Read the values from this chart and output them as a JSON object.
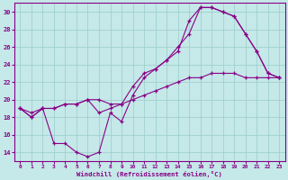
{
  "xlabel": "Windchill (Refroidissement éolien,°C)",
  "bg_color": "#c5e8e8",
  "line_color": "#880088",
  "grid_color": "#99cccc",
  "hours": [
    0,
    1,
    2,
    3,
    4,
    5,
    6,
    7,
    8,
    9,
    10,
    11,
    12,
    13,
    14,
    15,
    16,
    17,
    18,
    19,
    20,
    21,
    22,
    23
  ],
  "line_jagged": [
    19.0,
    18.0,
    19.0,
    15.0,
    15.0,
    14.0,
    13.5,
    14.0,
    18.5,
    17.5,
    20.5,
    22.5,
    23.5,
    24.5,
    25.5,
    29.0,
    30.5,
    30.5,
    30.0,
    29.5,
    27.5,
    25.5,
    23.0,
    22.5
  ],
  "line_diagonal": [
    19.0,
    18.5,
    19.0,
    19.0,
    19.5,
    19.5,
    20.0,
    20.0,
    19.5,
    19.5,
    20.0,
    20.5,
    21.0,
    21.5,
    22.0,
    22.5,
    22.5,
    23.0,
    23.0,
    23.0,
    22.5,
    22.5,
    22.5,
    22.5
  ],
  "line_upper": [
    19.0,
    18.0,
    19.0,
    19.0,
    19.5,
    19.5,
    20.0,
    18.5,
    19.0,
    19.5,
    21.5,
    23.0,
    23.5,
    24.5,
    26.0,
    27.5,
    30.5,
    30.5,
    30.0,
    29.5,
    27.5,
    25.5,
    23.0,
    22.5
  ],
  "ylim": [
    13.0,
    31.0
  ],
  "xlim": [
    -0.5,
    23.5
  ],
  "yticks": [
    14,
    16,
    18,
    20,
    22,
    24,
    26,
    28,
    30
  ],
  "xticks": [
    0,
    1,
    2,
    3,
    4,
    5,
    6,
    7,
    8,
    9,
    10,
    11,
    12,
    13,
    14,
    15,
    16,
    17,
    18,
    19,
    20,
    21,
    22,
    23
  ]
}
